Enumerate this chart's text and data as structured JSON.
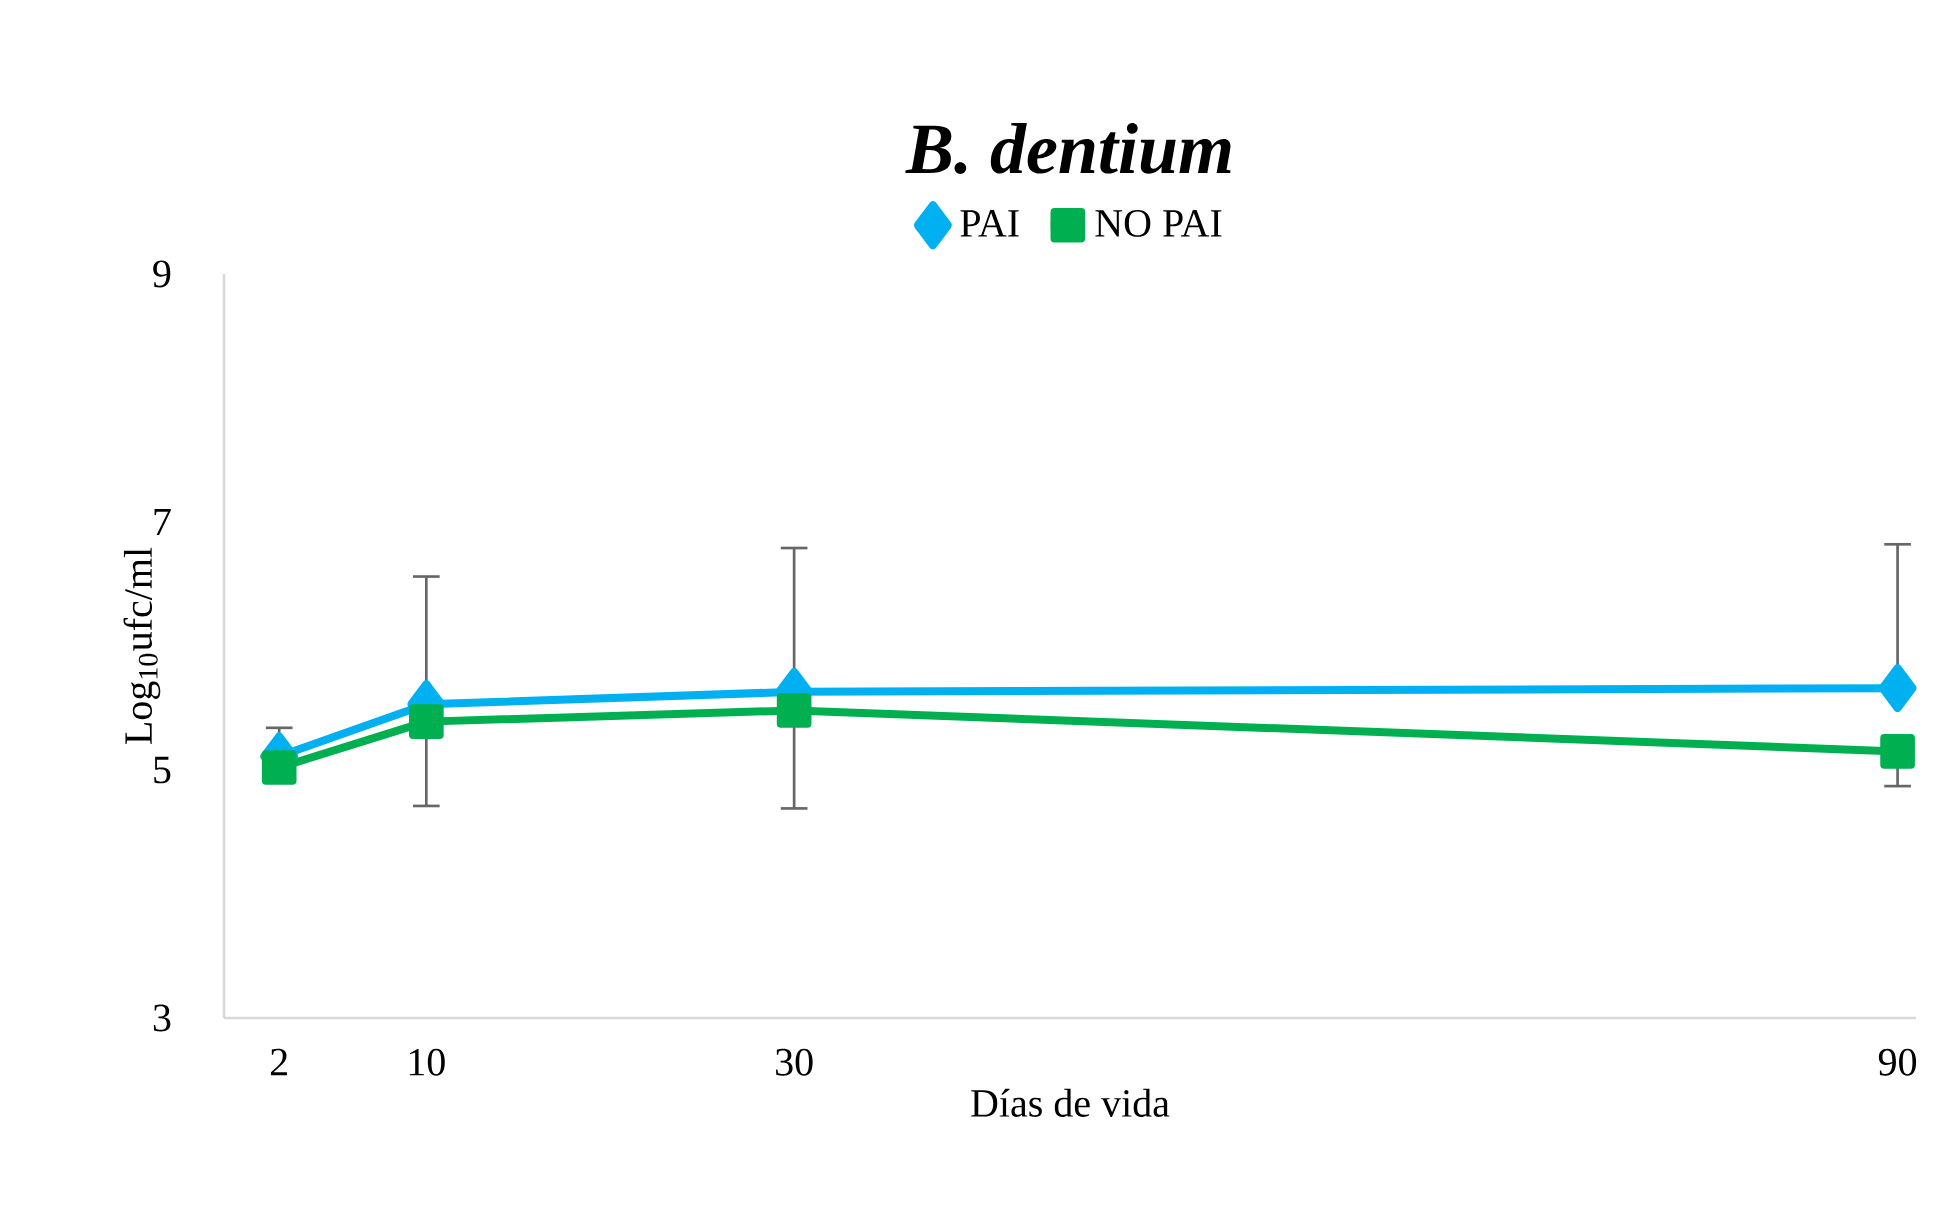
{
  "chart_data": {
    "type": "line",
    "title": "*B. dentium*",
    "xlabel": "Días de vida",
    "ylabel": "Log$_{10}$ufc/ml",
    "x": [
      2,
      10,
      30,
      90
    ],
    "xlim": [
      -1,
      91
    ],
    "xticks": [
      2,
      10,
      30,
      90
    ],
    "ylim": [
      3,
      9
    ],
    "yticks": [
      3,
      5,
      7,
      9
    ],
    "grid": false,
    "legend": "top",
    "series": [
      {
        "name": "PAI",
        "color": "#00b0f0",
        "marker": "diamond",
        "values": [
          5.11,
          5.53,
          5.63,
          5.66
        ],
        "errors": [
          [
            5.11,
            5.34
          ],
          [
            5.53,
            6.56
          ],
          [
            5.63,
            6.79
          ],
          [
            5.66,
            6.82
          ]
        ]
      },
      {
        "name": "NO PAI",
        "color": "#00b050",
        "marker": "square",
        "values": [
          5.02,
          5.39,
          5.48,
          5.15
        ],
        "errors": [
          null,
          [
            4.71,
            5.39
          ],
          [
            4.69,
            5.48
          ],
          [
            4.87,
            5.15
          ]
        ]
      }
    ]
  }
}
